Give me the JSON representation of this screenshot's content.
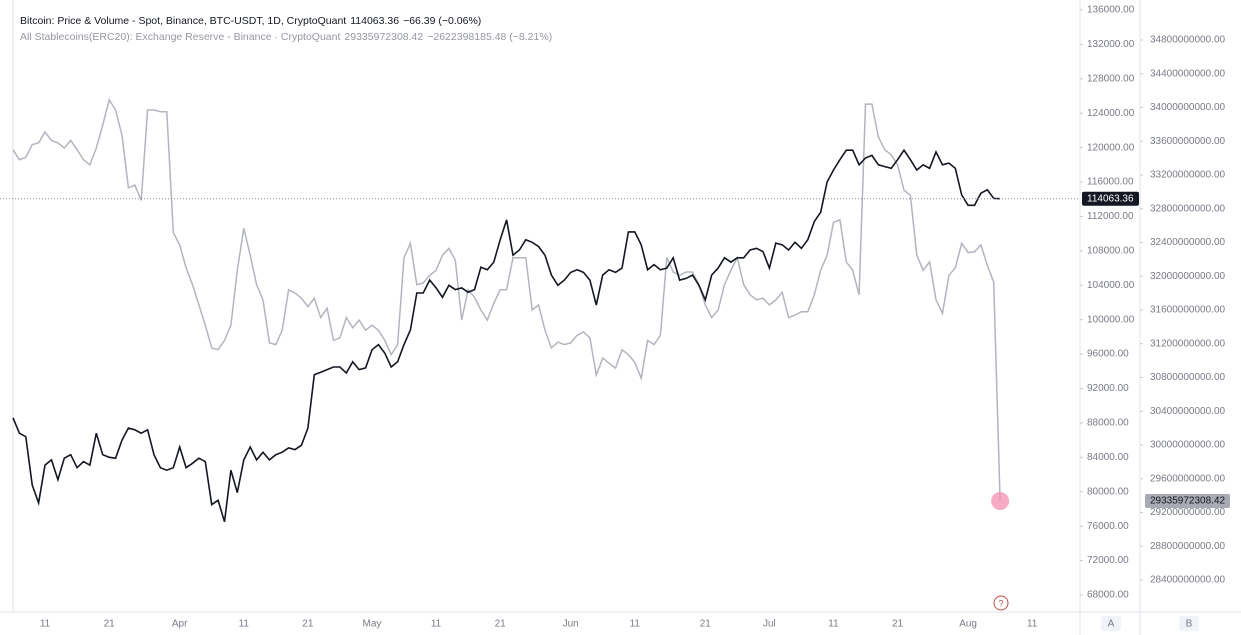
{
  "chart_data": {
    "type": "line",
    "categories": [
      null,
      null,
      null,
      null,
      null,
      "11",
      null,
      null,
      null,
      null,
      null,
      null,
      null,
      null,
      null,
      "21",
      null,
      null,
      null,
      null,
      null,
      null,
      null,
      null,
      null,
      null,
      "Apr",
      null,
      null,
      null,
      null,
      null,
      null,
      null,
      null,
      null,
      "11",
      null,
      null,
      null,
      null,
      null,
      null,
      null,
      null,
      null,
      "21",
      null,
      null,
      null,
      null,
      null,
      null,
      null,
      null,
      null,
      "May",
      null,
      null,
      null,
      null,
      null,
      null,
      null,
      null,
      null,
      "11",
      null,
      null,
      null,
      null,
      null,
      null,
      null,
      null,
      null,
      "21",
      null,
      null,
      null,
      null,
      null,
      null,
      null,
      null,
      null,
      null,
      "Jun",
      null,
      null,
      null,
      null,
      null,
      null,
      null,
      null,
      null,
      "11",
      null,
      null,
      null,
      null,
      null,
      null,
      null,
      null,
      null,
      null,
      "21",
      null,
      null,
      null,
      null,
      null,
      null,
      null,
      null,
      null,
      "Jul",
      null,
      null,
      null,
      null,
      null,
      null,
      null,
      null,
      null,
      "11",
      null,
      null,
      null,
      null,
      null,
      null,
      null,
      null,
      null,
      "21",
      null,
      null,
      null,
      null,
      null,
      null,
      null,
      null,
      null,
      null,
      "Aug",
      null,
      null,
      null,
      null,
      null,
      null,
      null,
      null,
      null,
      "11",
      null,
      null,
      null,
      null,
      null,
      null
    ],
    "series": [
      {
        "name": "Bitcoin: Price & Volume - Spot, Binance, BTC-USDT, 1D, CryptoQuant",
        "color": "#131722",
        "change": "−66.39 (−0.06%)",
        "values": [
          88600,
          86800,
          86400,
          80800,
          78700,
          83100,
          83700,
          81400,
          83900,
          84300,
          82800,
          83500,
          83100,
          86800,
          84300,
          84000,
          83900,
          86000,
          87400,
          87200,
          86800,
          87200,
          84300,
          82800,
          82500,
          82800,
          85200,
          82800,
          83300,
          83900,
          83500,
          78500,
          79000,
          76500,
          82500,
          79900,
          83700,
          85200,
          83700,
          84600,
          83700,
          84300,
          84600,
          85100,
          84900,
          85400,
          87400,
          93600,
          93900,
          94200,
          94500,
          94500,
          93800,
          95100,
          94200,
          94400,
          96500,
          97100,
          96100,
          94500,
          95100,
          97100,
          98800,
          103100,
          103100,
          104600,
          103700,
          102600,
          104000,
          103500,
          103700,
          103200,
          103500,
          106100,
          105800,
          106700,
          109300,
          111600,
          107500,
          108100,
          109300,
          109000,
          108500,
          107500,
          105200,
          104000,
          104600,
          105500,
          105800,
          105500,
          104600,
          101700,
          105200,
          105800,
          105500,
          106000,
          110200,
          110200,
          108700,
          105800,
          106400,
          105800,
          106000,
          107200,
          104600,
          104800,
          105200,
          104000,
          102300,
          105200,
          106000,
          107200,
          106700,
          107200,
          107200,
          108100,
          108300,
          107900,
          106000,
          108900,
          108700,
          108100,
          109000,
          108300,
          109300,
          111400,
          112500,
          116000,
          117400,
          118600,
          119700,
          119700,
          118000,
          118800,
          119100,
          118000,
          117800,
          117600,
          118600,
          119700,
          118600,
          117400,
          118000,
          117600,
          119500,
          118000,
          118200,
          117600,
          114500,
          113300,
          113300,
          114700,
          115100,
          114100,
          114063.36,
          null,
          null,
          null,
          null,
          null,
          null,
          null,
          null,
          null,
          null,
          null
        ]
      },
      {
        "name": "All Stablecoins(ERC20): Exchange Reserve - Binance · CryptoQuant",
        "color": "#b2b5be",
        "axis": "y2",
        "change": "−2622398185.48 (−8.21%)",
        "values": [
          33500000000,
          33380000000,
          33410000000,
          33560000000,
          33580000000,
          33710000000,
          33610000000,
          33580000000,
          33520000000,
          33610000000,
          33500000000,
          33380000000,
          33320000000,
          33520000000,
          33790000000,
          34090000000,
          33970000000,
          33670000000,
          33050000000,
          33080000000,
          32900000000,
          33970000000,
          33970000000,
          33950000000,
          33950000000,
          32520000000,
          32370000000,
          32100000000,
          31900000000,
          31660000000,
          31420000000,
          31150000000,
          31130000000,
          31240000000,
          31420000000,
          32070000000,
          32570000000,
          32250000000,
          31900000000,
          31720000000,
          31210000000,
          31190000000,
          31360000000,
          31840000000,
          31800000000,
          31740000000,
          31640000000,
          31740000000,
          31510000000,
          31620000000,
          31240000000,
          31270000000,
          31510000000,
          31390000000,
          31480000000,
          31360000000,
          31420000000,
          31360000000,
          31240000000,
          31070000000,
          31190000000,
          32220000000,
          32390000000,
          31900000000,
          31920000000,
          32010000000,
          32070000000,
          32250000000,
          32330000000,
          32190000000,
          31480000000,
          31840000000,
          31750000000,
          31600000000,
          31480000000,
          31680000000,
          31840000000,
          31840000000,
          32220000000,
          32220000000,
          32220000000,
          31600000000,
          31660000000,
          31360000000,
          31150000000,
          31220000000,
          31190000000,
          31210000000,
          31300000000,
          31340000000,
          31270000000,
          30830000000,
          31030000000,
          30970000000,
          30910000000,
          31130000000,
          31070000000,
          30980000000,
          30790000000,
          31240000000,
          31190000000,
          31300000000,
          32220000000,
          32050000000,
          32010000000,
          32050000000,
          32050000000,
          31900000000,
          31660000000,
          31510000000,
          31600000000,
          31900000000,
          32070000000,
          32220000000,
          31900000000,
          31780000000,
          31720000000,
          31740000000,
          31660000000,
          31720000000,
          31810000000,
          31510000000,
          31540000000,
          31580000000,
          31580000000,
          31780000000,
          32070000000,
          32250000000,
          32640000000,
          32670000000,
          32170000000,
          32070000000,
          31780000000,
          34040000000,
          34040000000,
          33650000000,
          33500000000,
          33440000000,
          33320000000,
          33020000000,
          32960000000,
          32250000000,
          32070000000,
          32170000000,
          31720000000,
          31560000000,
          32010000000,
          32100000000,
          32390000000,
          32280000000,
          32290000000,
          32370000000,
          32130000000,
          31930000000,
          29335972308.42,
          null,
          null,
          null,
          null,
          null,
          null,
          null,
          null,
          null,
          null,
          null
        ]
      }
    ],
    "ylim": [
      66020,
      136000
    ],
    "yticks": [
      {
        "value": 68000,
        "label": "68000.00"
      },
      {
        "value": 72000,
        "label": "72000.00"
      },
      {
        "value": 76000,
        "label": "76000.00"
      },
      {
        "value": 80000,
        "label": "80000.00"
      },
      {
        "value": 84000,
        "label": "84000.00"
      },
      {
        "value": 88000,
        "label": "88000.00"
      },
      {
        "value": 92000,
        "label": "92000.00"
      },
      {
        "value": 96000,
        "label": "96000.00"
      },
      {
        "value": 100000,
        "label": "100000.00"
      },
      {
        "value": 104000,
        "label": "104000.00"
      },
      {
        "value": 108000,
        "label": "108000.00"
      },
      {
        "value": 112000,
        "label": "112000.00"
      },
      {
        "value": 116000,
        "label": "116000.00"
      },
      {
        "value": 120000,
        "label": "120000.00"
      },
      {
        "value": 124000,
        "label": "124000.00"
      },
      {
        "value": 128000,
        "label": "128000.00"
      },
      {
        "value": 132000,
        "label": "132000.00"
      },
      {
        "value": 136000,
        "label": "136000.00"
      }
    ],
    "y2lim": [
      28020700000,
      35155600000
    ],
    "y2ticks": [
      {
        "value": 28400000000,
        "label": "28400000000.00"
      },
      {
        "value": 28800000000,
        "label": "28800000000.00"
      },
      {
        "value": 29200000000,
        "label": "29200000000.00"
      },
      {
        "value": 29600000000,
        "label": "29600000000.00"
      },
      {
        "value": 30000000000,
        "label": "30000000000.00"
      },
      {
        "value": 30400000000,
        "label": "30400000000.00"
      },
      {
        "value": 30800000000,
        "label": "30800000000.00"
      },
      {
        "value": 31200000000,
        "label": "31200000000.00"
      },
      {
        "value": 31600000000,
        "label": "31600000000.00"
      },
      {
        "value": 32000000000,
        "label": "32000000000.00"
      },
      {
        "value": 32400000000,
        "label": "32400000000.00"
      },
      {
        "value": 32800000000,
        "label": "32800000000.00"
      },
      {
        "value": 33200000000,
        "label": "33200000000.00"
      },
      {
        "value": 33600000000,
        "label": "33600000000.00"
      },
      {
        "value": 34000000000,
        "label": "34000000000.00"
      },
      {
        "value": 34400000000,
        "label": "34400000000.00"
      },
      {
        "value": 34800000000,
        "label": "34800000000.00"
      }
    ],
    "grid": false,
    "pane_labels": [
      "A",
      "B"
    ],
    "help": "?"
  }
}
